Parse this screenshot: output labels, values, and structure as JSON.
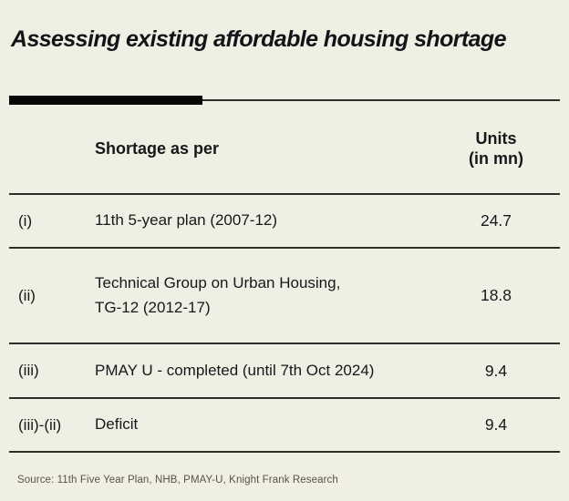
{
  "title": "Assessing existing affordable housing shortage",
  "colors": {
    "background": "#f0efe3",
    "text": "#18171b",
    "separator_line": "#2f2d29",
    "accent_bar": "#070707",
    "source_text": "#57524b"
  },
  "table": {
    "header": {
      "shortage_label": "Shortage as per",
      "units_line1": "Units",
      "units_line2": "(in mn)"
    },
    "rows": [
      {
        "label": "(i)",
        "lines": [
          "11th 5-year plan (2007-12)"
        ],
        "value": "24.7"
      },
      {
        "label": "(ii)",
        "lines": [
          "Technical Group on Urban Housing,",
          "TG-12 (2012-17)"
        ],
        "value": "18.8"
      },
      {
        "label": "(iii)",
        "lines": [
          "PMAY U - completed (until 7th Oct 2024)"
        ],
        "value": "9.4"
      },
      {
        "label": "(iii)-(ii)",
        "lines": [
          "Deficit"
        ],
        "value": "9.4"
      }
    ]
  },
  "source": "Source: 11th Five Year Plan, NHB, PMAY-U, Knight Frank Research",
  "chart_data": {
    "type": "table",
    "title": "Assessing existing affordable housing shortage",
    "columns": [
      "",
      "Shortage as per",
      "Units (in mn)"
    ],
    "rows": [
      [
        "(i)",
        "11th 5-year plan (2007-12)",
        24.7
      ],
      [
        "(ii)",
        "Technical Group on Urban Housing, TG-12 (2012-17)",
        18.8
      ],
      [
        "(iii)",
        "PMAY U - completed (until 7th Oct 2024)",
        9.4
      ],
      [
        "(iii)-(ii)",
        "Deficit",
        9.4
      ]
    ],
    "source": "Source: 11th Five Year Plan, NHB, PMAY-U, Knight Frank Research"
  }
}
